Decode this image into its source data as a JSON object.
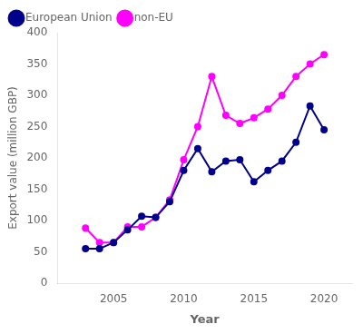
{
  "chart_data": {
    "type": "line",
    "xlabel": "Year",
    "ylabel": "Export value (million GBP)",
    "series": [
      {
        "name": "European Union",
        "color": "#00008B",
        "x": [
          2003,
          2004,
          2005,
          2006,
          2007,
          2008,
          2009,
          2010,
          2011,
          2012,
          2013,
          2014,
          2015,
          2016,
          2017,
          2018,
          2019,
          2020
        ],
        "values": [
          55,
          55,
          65,
          85,
          107,
          105,
          130,
          180,
          215,
          178,
          195,
          197,
          162,
          180,
          195,
          225,
          283,
          245
        ]
      },
      {
        "name": "non-EU",
        "color": "#FF00FF",
        "x": [
          2003,
          2004,
          2005,
          2006,
          2007,
          2008,
          2009,
          2010,
          2011,
          2012,
          2013,
          2014,
          2015,
          2016,
          2017,
          2018,
          2019,
          2020
        ],
        "values": [
          88,
          65,
          65,
          90,
          90,
          105,
          133,
          197,
          250,
          330,
          268,
          255,
          264,
          278,
          300,
          330,
          350,
          365
        ]
      }
    ],
    "xlim": [
      2001,
      2022
    ],
    "ylim": [
      0,
      400
    ],
    "xticks": [
      2005,
      2010,
      2015,
      2020
    ],
    "yticks": [
      0,
      50,
      100,
      150,
      200,
      250,
      300,
      350,
      400
    ],
    "marker": "circle",
    "legend": "upper left",
    "grid": false
  }
}
